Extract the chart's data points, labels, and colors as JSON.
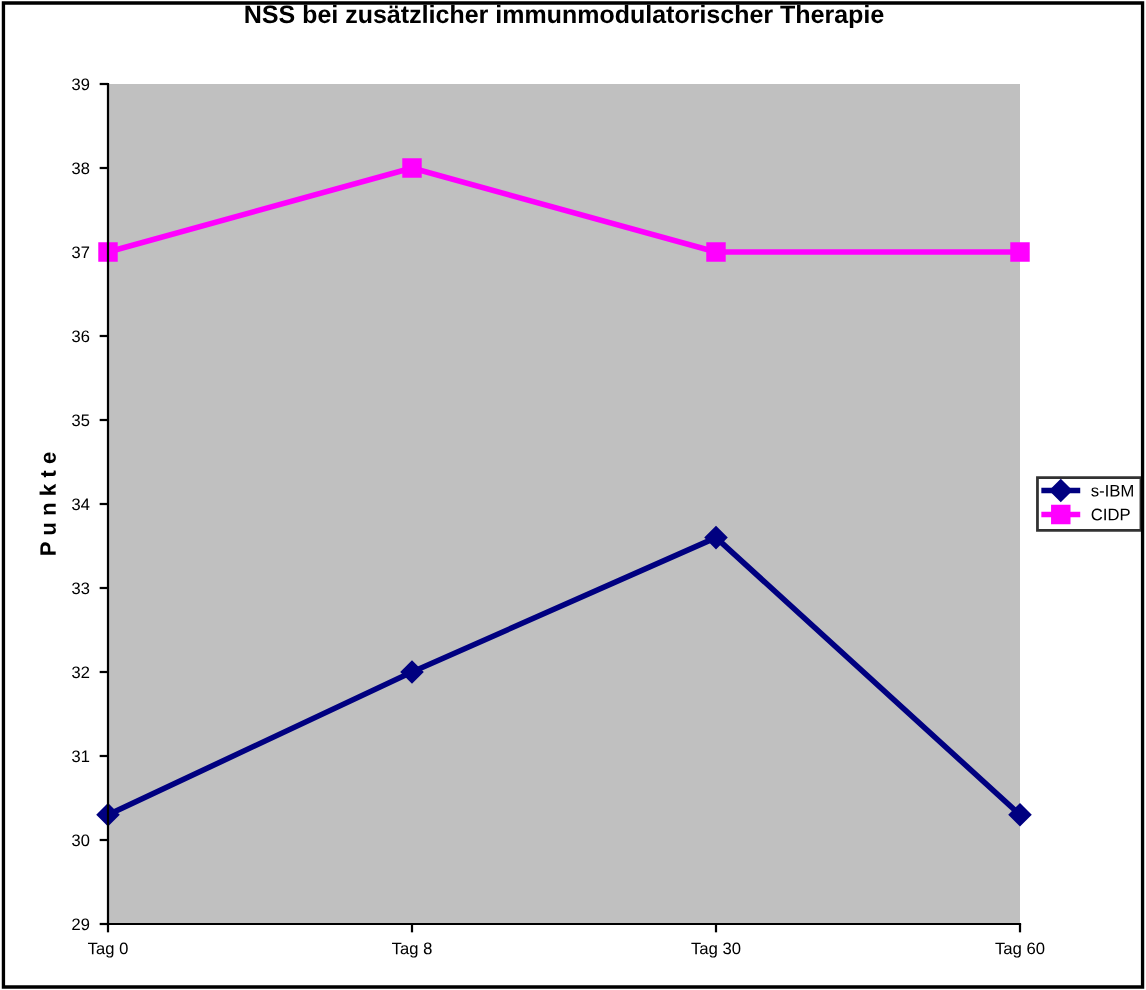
{
  "chart_data": {
    "type": "line",
    "title": "NSS bei zusätzlicher immunmodulatorischer Therapie",
    "ylabel": "P u n k t e",
    "categories": [
      "Tag 0",
      "Tag 8",
      "Tag 30",
      "Tag 60"
    ],
    "series": [
      {
        "name": "s-IBM",
        "color": "#000080",
        "values": [
          30.3,
          32.0,
          33.6,
          30.3
        ],
        "marker": "diamond"
      },
      {
        "name": "CIDP",
        "color": "#ff00ff",
        "values": [
          37,
          38,
          37,
          37
        ],
        "marker": "square"
      }
    ],
    "ylim": [
      29,
      39
    ],
    "yticks": [
      29,
      30,
      31,
      32,
      33,
      34,
      35,
      36,
      37,
      38,
      39
    ],
    "grid": false,
    "legend": "right",
    "line_style": "solid"
  }
}
